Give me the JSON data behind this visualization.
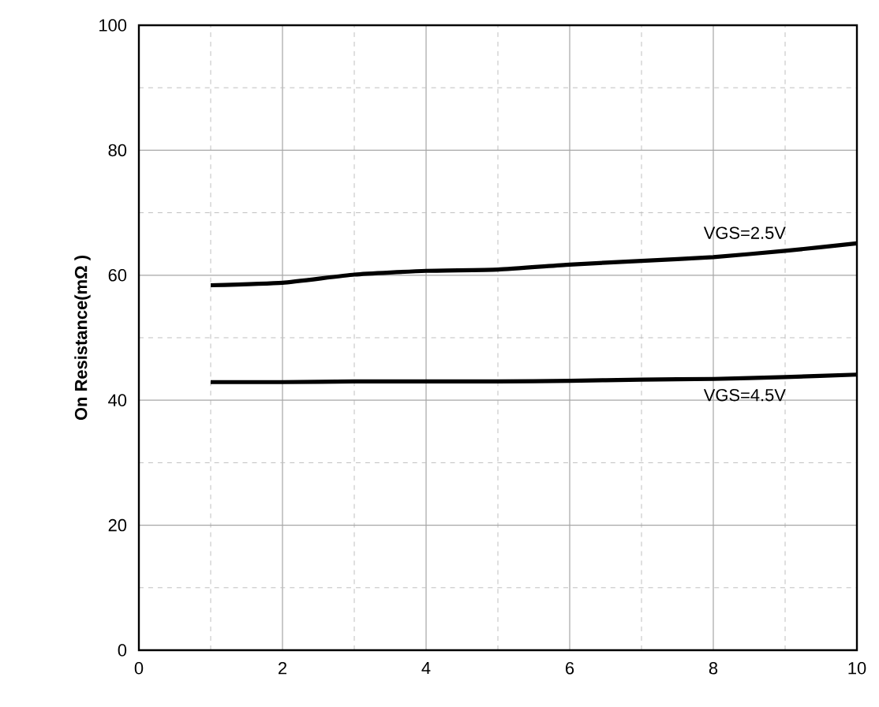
{
  "chart_data": {
    "type": "line",
    "ylabel": "On Resistance(mΩ )",
    "x": [
      1,
      2,
      3,
      4,
      5,
      6,
      7,
      8,
      9,
      10
    ],
    "series": [
      {
        "name": "VGS=2.5V",
        "color": "#000000",
        "values": [
          58.4,
          58.8,
          60.1,
          60.7,
          60.9,
          61.7,
          62.3,
          62.9,
          63.9,
          65.1
        ]
      },
      {
        "name": "VGS=4.5V",
        "color": "#000000",
        "values": [
          42.9,
          42.9,
          43.0,
          43.0,
          43.0,
          43.1,
          43.3,
          43.4,
          43.7,
          44.1
        ]
      }
    ],
    "xlim": [
      0,
      10
    ],
    "ylim": [
      0,
      100
    ],
    "xticks": [
      0,
      2,
      4,
      6,
      8,
      10
    ],
    "yticks": [
      0,
      20,
      40,
      60,
      80,
      100
    ],
    "grid": true,
    "marker": "none",
    "line_style": "solid"
  }
}
